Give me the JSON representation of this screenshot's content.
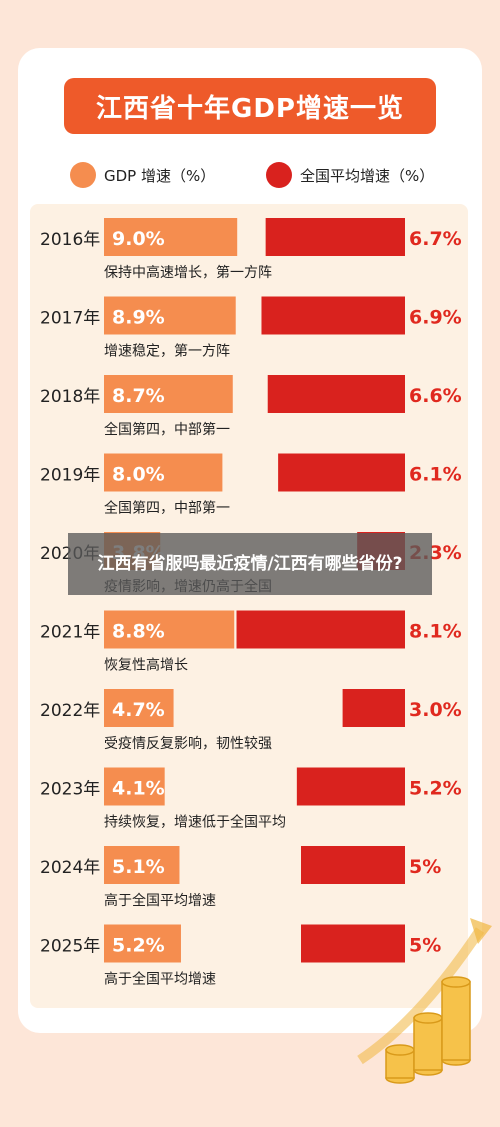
{
  "title": "江西省十年GDP增速一览",
  "legend": {
    "jiangxi": "GDP 增速（%）",
    "national": "全国平均增速（%）"
  },
  "colors": {
    "jiangxi": "#f58d4f",
    "national": "#d9221e",
    "label_text": "#e0291f",
    "title_bg": "#ee5a2a"
  },
  "overlay_text": "江西有省服吗最近疫情/江西有哪些省份?",
  "chart_data": {
    "type": "bar",
    "categories": [
      "2016年",
      "2017年",
      "2018年",
      "2019年",
      "2020年",
      "2021年",
      "2022年",
      "2023年",
      "2024年",
      "2025年"
    ],
    "series": [
      {
        "key": "jiangxi",
        "values": [
          9.0,
          8.9,
          8.7,
          8.0,
          3.8,
          8.8,
          4.7,
          4.1,
          5.1,
          5.2
        ],
        "labels": [
          "9.0%",
          "8.9%",
          "8.7%",
          "8.0%",
          "3.8%",
          "8.8%",
          "4.7%",
          "4.1%",
          "5.1%",
          "5.2%"
        ]
      },
      {
        "key": "national",
        "values": [
          6.7,
          6.9,
          6.6,
          6.1,
          2.3,
          8.1,
          3.0,
          5.2,
          5.0,
          5.0
        ],
        "labels": [
          "6.7%",
          "6.9%",
          "6.6%",
          "6.1%",
          "2.3%",
          "8.1%",
          "3.0%",
          "5.2%",
          "5%",
          "5%"
        ]
      }
    ],
    "notes": [
      "保持中高速增长，第一方阵",
      "增速稳定，第一方阵",
      "全国第四，中部第一",
      "全国第四，中部第一",
      "疫情影响，增速仍高于全国",
      "恢复性高增长",
      "受疫情反复影响，韧性较强",
      "持续恢复，增速低于全国平均",
      "高于全国平均增速",
      "高于全国平均增速"
    ]
  }
}
